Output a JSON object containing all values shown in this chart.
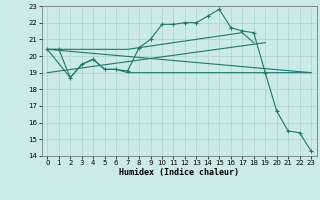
{
  "title": "",
  "xlabel": "Humidex (Indice chaleur)",
  "bg_color": "#cceae7",
  "grid_color": "#aad4d0",
  "line_color": "#1a7a6e",
  "xlim": [
    -0.5,
    23.5
  ],
  "ylim": [
    14,
    23
  ],
  "yticks": [
    14,
    15,
    16,
    17,
    18,
    19,
    20,
    21,
    22,
    23
  ],
  "xticks": [
    0,
    1,
    2,
    3,
    4,
    5,
    6,
    7,
    8,
    9,
    10,
    11,
    12,
    13,
    14,
    15,
    16,
    17,
    18,
    19,
    20,
    21,
    22,
    23
  ],
  "line_flat_rising": {
    "x": [
      0,
      1,
      2,
      3,
      4,
      5,
      6,
      7,
      8,
      9,
      10,
      11,
      12,
      13,
      14,
      15,
      16,
      17,
      18
    ],
    "y": [
      20.4,
      20.4,
      20.4,
      20.4,
      20.4,
      20.4,
      20.4,
      20.4,
      20.5,
      20.6,
      20.7,
      20.8,
      20.9,
      21.0,
      21.1,
      21.2,
      21.3,
      21.4,
      20.8
    ],
    "marker_x": [
      1
    ],
    "marker_y": [
      20.4
    ]
  },
  "line_diag_down": {
    "x": [
      0,
      23
    ],
    "y": [
      20.4,
      19.0
    ]
  },
  "line_nearly_flat": {
    "x": [
      0,
      1,
      2,
      3,
      4,
      5,
      6,
      7,
      23
    ],
    "y": [
      20.4,
      20.4,
      18.7,
      19.5,
      19.8,
      19.2,
      19.2,
      19.0,
      19.0
    ]
  },
  "line_diag_up": {
    "x": [
      0,
      19
    ],
    "y": [
      19.0,
      20.8
    ]
  },
  "line_main": {
    "x": [
      0,
      2,
      3,
      4,
      5,
      6,
      7,
      8,
      9,
      10,
      11,
      12,
      13,
      14,
      15,
      16,
      17,
      18,
      19,
      20,
      21,
      22,
      23
    ],
    "y": [
      20.4,
      18.7,
      19.5,
      19.8,
      19.2,
      19.2,
      19.1,
      20.5,
      21.0,
      21.9,
      21.9,
      22.0,
      22.0,
      22.4,
      22.8,
      21.7,
      21.5,
      21.4,
      19.0,
      16.7,
      15.5,
      15.4,
      14.3
    ]
  }
}
